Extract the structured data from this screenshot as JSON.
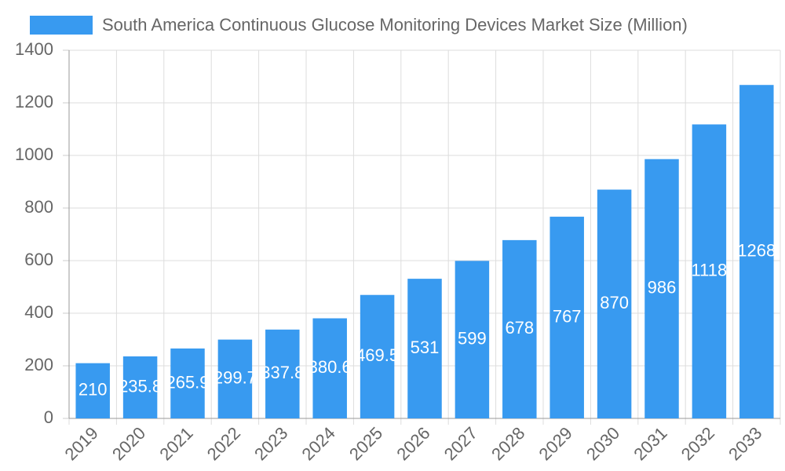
{
  "chart_data": {
    "type": "bar",
    "categories": [
      "2019",
      "2020",
      "2021",
      "2022",
      "2023",
      "2024",
      "2025",
      "2026",
      "2027",
      "2028",
      "2029",
      "2030",
      "2031",
      "2032",
      "2033"
    ],
    "series": [
      {
        "name": "South America Continuous Glucose Monitoring Devices Market Size (Million)",
        "color": "#389af0",
        "values": [
          210,
          235.8,
          265.9,
          299.7,
          337.8,
          380.6,
          469.5,
          531,
          599,
          678,
          767,
          870,
          986,
          1118,
          1268
        ]
      }
    ],
    "ylim": [
      0,
      1400
    ],
    "yticks": [
      0,
      200,
      400,
      600,
      800,
      1000,
      1200,
      1400
    ],
    "grid": true
  }
}
